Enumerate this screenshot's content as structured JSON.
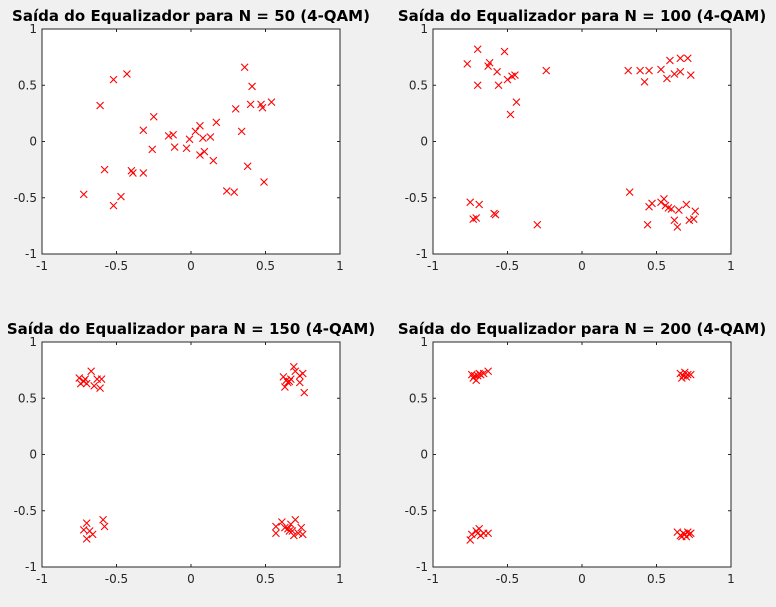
{
  "colors": {
    "background": "#f0f0f0",
    "axes": "#ffffff",
    "grid": "#dcdcdc",
    "marker": "#ff0000",
    "text": "#000000"
  },
  "chart_data": [
    {
      "type": "scatter",
      "title": "Saída do Equalizador para N = 50 (4-QAM)",
      "xlabel": "",
      "ylabel": "",
      "xlim": [
        -1,
        1
      ],
      "ylim": [
        -1,
        1
      ],
      "xticks": [
        "-1",
        "-0.5",
        "0",
        "0.5",
        "1"
      ],
      "yticks": [
        "-1",
        "-0.5",
        "0",
        "0.5",
        "1"
      ],
      "grid": true,
      "marker": "x",
      "points": [
        [
          -0.72,
          -0.47
        ],
        [
          -0.61,
          0.32
        ],
        [
          -0.58,
          -0.25
        ],
        [
          -0.52,
          0.55
        ],
        [
          -0.52,
          -0.57
        ],
        [
          -0.47,
          -0.49
        ],
        [
          -0.43,
          0.6
        ],
        [
          -0.4,
          -0.26
        ],
        [
          -0.39,
          -0.28
        ],
        [
          -0.32,
          0.1
        ],
        [
          -0.32,
          -0.28
        ],
        [
          -0.25,
          0.22
        ],
        [
          -0.26,
          -0.07
        ],
        [
          -0.15,
          0.05
        ],
        [
          -0.12,
          0.06
        ],
        [
          -0.11,
          -0.05
        ],
        [
          -0.03,
          -0.06
        ],
        [
          -0.01,
          0.02
        ],
        [
          0.03,
          0.09
        ],
        [
          0.06,
          0.14
        ],
        [
          0.06,
          -0.12
        ],
        [
          0.08,
          0.03
        ],
        [
          0.09,
          -0.09
        ],
        [
          0.13,
          0.04
        ],
        [
          0.15,
          -0.17
        ],
        [
          0.17,
          0.17
        ],
        [
          0.24,
          -0.44
        ],
        [
          0.29,
          -0.45
        ],
        [
          0.3,
          0.29
        ],
        [
          0.34,
          0.09
        ],
        [
          0.36,
          0.66
        ],
        [
          0.38,
          -0.22
        ],
        [
          0.4,
          0.33
        ],
        [
          0.41,
          0.49
        ],
        [
          0.47,
          0.33
        ],
        [
          0.48,
          0.3
        ],
        [
          0.49,
          -0.36
        ],
        [
          0.54,
          0.35
        ]
      ]
    },
    {
      "type": "scatter",
      "title": "Saída do Equalizador para N = 100 (4-QAM)",
      "xlabel": "",
      "ylabel": "",
      "xlim": [
        -1,
        1
      ],
      "ylim": [
        -1,
        1
      ],
      "xticks": [
        "-1",
        "-0.5",
        "0",
        "0.5",
        "1"
      ],
      "yticks": [
        "-1",
        "-0.5",
        "0",
        "0.5",
        "1"
      ],
      "grid": true,
      "marker": "x",
      "points": [
        [
          -0.77,
          0.69
        ],
        [
          -0.7,
          0.82
        ],
        [
          -0.7,
          0.5
        ],
        [
          -0.63,
          0.67
        ],
        [
          -0.62,
          0.7
        ],
        [
          -0.57,
          0.62
        ],
        [
          -0.56,
          0.5
        ],
        [
          -0.52,
          0.8
        ],
        [
          -0.5,
          0.55
        ],
        [
          -0.48,
          0.24
        ],
        [
          -0.47,
          0.58
        ],
        [
          -0.45,
          0.59
        ],
        [
          -0.44,
          0.35
        ],
        [
          -0.24,
          0.63
        ],
        [
          0.31,
          0.63
        ],
        [
          0.39,
          0.63
        ],
        [
          0.45,
          0.63
        ],
        [
          0.42,
          0.53
        ],
        [
          0.53,
          0.64
        ],
        [
          0.57,
          0.56
        ],
        [
          0.59,
          0.72
        ],
        [
          0.62,
          0.6
        ],
        [
          0.66,
          0.74
        ],
        [
          0.66,
          0.62
        ],
        [
          0.71,
          0.74
        ],
        [
          0.73,
          0.59
        ],
        [
          -0.75,
          -0.54
        ],
        [
          -0.73,
          -0.69
        ],
        [
          -0.71,
          -0.68
        ],
        [
          -0.69,
          -0.56
        ],
        [
          -0.59,
          -0.64
        ],
        [
          -0.58,
          -0.65
        ],
        [
          -0.3,
          -0.74
        ],
        [
          0.32,
          -0.45
        ],
        [
          0.44,
          -0.74
        ],
        [
          0.45,
          -0.58
        ],
        [
          0.47,
          -0.55
        ],
        [
          0.53,
          -0.54
        ],
        [
          0.55,
          -0.51
        ],
        [
          0.56,
          -0.57
        ],
        [
          0.58,
          -0.59
        ],
        [
          0.6,
          -0.6
        ],
        [
          0.62,
          -0.7
        ],
        [
          0.64,
          -0.76
        ],
        [
          0.65,
          -0.61
        ],
        [
          0.7,
          -0.56
        ],
        [
          0.72,
          -0.7
        ],
        [
          0.75,
          -0.69
        ],
        [
          0.76,
          -0.62
        ]
      ]
    },
    {
      "type": "scatter",
      "title": "Saída do Equalizador para N = 150 (4-QAM)",
      "xlabel": "",
      "ylabel": "",
      "xlim": [
        -1,
        1
      ],
      "ylim": [
        -1,
        1
      ],
      "xticks": [
        "-1",
        "-0.5",
        "0",
        "0.5",
        "1"
      ],
      "yticks": [
        "-1",
        "-0.5",
        "0",
        "0.5",
        "1"
      ],
      "grid": true,
      "marker": "x",
      "points": [
        [
          -0.75,
          0.68
        ],
        [
          -0.74,
          0.63
        ],
        [
          -0.72,
          0.65
        ],
        [
          -0.71,
          0.67
        ],
        [
          -0.7,
          0.63
        ],
        [
          -0.67,
          0.74
        ],
        [
          -0.65,
          0.61
        ],
        [
          -0.63,
          0.67
        ],
        [
          -0.61,
          0.59
        ],
        [
          -0.6,
          0.67
        ],
        [
          0.62,
          0.69
        ],
        [
          0.63,
          0.6
        ],
        [
          0.64,
          0.66
        ],
        [
          0.65,
          0.64
        ],
        [
          0.66,
          0.65
        ],
        [
          0.67,
          0.67
        ],
        [
          0.69,
          0.78
        ],
        [
          0.7,
          0.74
        ],
        [
          0.73,
          0.64
        ],
        [
          0.73,
          0.7
        ],
        [
          0.75,
          0.72
        ],
        [
          0.76,
          0.55
        ],
        [
          -0.72,
          -0.67
        ],
        [
          -0.7,
          -0.61
        ],
        [
          -0.7,
          -0.75
        ],
        [
          -0.68,
          -0.68
        ],
        [
          -0.66,
          -0.71
        ],
        [
          -0.59,
          -0.58
        ],
        [
          -0.58,
          -0.64
        ],
        [
          0.57,
          -0.64
        ],
        [
          0.57,
          -0.7
        ],
        [
          0.61,
          -0.6
        ],
        [
          0.63,
          -0.65
        ],
        [
          0.65,
          -0.66
        ],
        [
          0.66,
          -0.68
        ],
        [
          0.67,
          -0.62
        ],
        [
          0.68,
          -0.68
        ],
        [
          0.69,
          -0.72
        ],
        [
          0.7,
          -0.58
        ],
        [
          0.72,
          -0.7
        ],
        [
          0.74,
          -0.65
        ],
        [
          0.75,
          -0.71
        ]
      ]
    },
    {
      "type": "scatter",
      "title": "Saída do Equalizador para N = 200 (4-QAM)",
      "xlabel": "",
      "ylabel": "",
      "xlim": [
        -1,
        1
      ],
      "ylim": [
        -1,
        1
      ],
      "xticks": [
        "-1",
        "-0.5",
        "0",
        "0.5",
        "1"
      ],
      "yticks": [
        "-1",
        "-0.5",
        "0",
        "0.5",
        "1"
      ],
      "grid": true,
      "marker": "x",
      "points": [
        [
          -0.74,
          0.71
        ],
        [
          -0.73,
          0.68
        ],
        [
          -0.72,
          0.7
        ],
        [
          -0.71,
          0.66
        ],
        [
          -0.7,
          0.7
        ],
        [
          -0.69,
          0.72
        ],
        [
          -0.68,
          0.71
        ],
        [
          -0.66,
          0.72
        ],
        [
          -0.63,
          0.74
        ],
        [
          0.66,
          0.72
        ],
        [
          0.67,
          0.68
        ],
        [
          0.68,
          0.7
        ],
        [
          0.69,
          0.73
        ],
        [
          0.7,
          0.69
        ],
        [
          0.71,
          0.71
        ],
        [
          0.73,
          0.71
        ],
        [
          -0.75,
          -0.76
        ],
        [
          -0.74,
          -0.71
        ],
        [
          -0.71,
          -0.68
        ],
        [
          -0.7,
          -0.7
        ],
        [
          -0.69,
          -0.66
        ],
        [
          -0.68,
          -0.72
        ],
        [
          -0.66,
          -0.7
        ],
        [
          -0.63,
          -0.7
        ],
        [
          0.64,
          -0.69
        ],
        [
          0.66,
          -0.72
        ],
        [
          0.67,
          -0.73
        ],
        [
          0.68,
          -0.7
        ],
        [
          0.69,
          -0.71
        ],
        [
          0.7,
          -0.73
        ],
        [
          0.71,
          -0.69
        ],
        [
          0.72,
          -0.71
        ],
        [
          0.73,
          -0.7
        ]
      ]
    }
  ]
}
